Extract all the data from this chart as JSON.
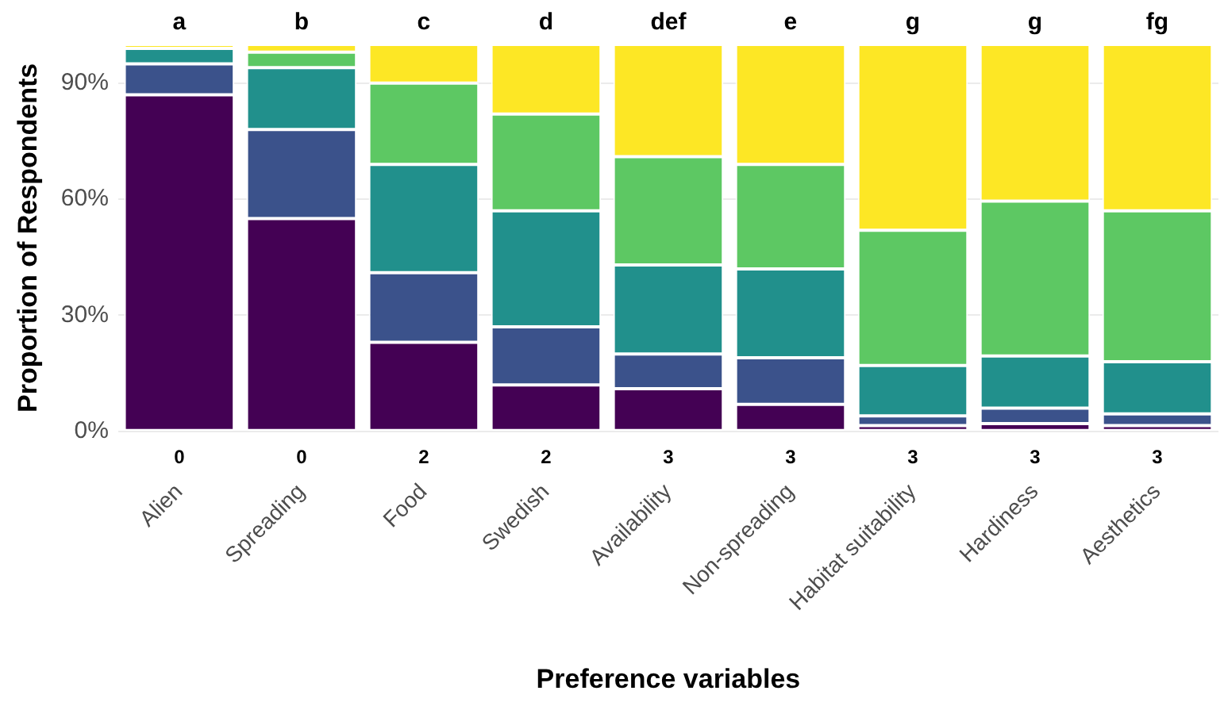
{
  "chart_data": {
    "type": "bar",
    "stacked": true,
    "xlabel": "Preference variables",
    "ylabel": "Proportion of Respondents",
    "categories": [
      "Alien",
      "Spreading",
      "Food",
      "Swedish",
      "Availability",
      "Non-spreading",
      "Habitat suitability",
      "Hardiness",
      "Aesthetics"
    ],
    "series": [
      {
        "color": "#440154",
        "values": [
          87,
          55,
          23,
          12,
          11,
          7,
          1.5,
          2,
          1.5
        ]
      },
      {
        "color": "#3b528b",
        "values": [
          8,
          23,
          18,
          15,
          9,
          12,
          2.5,
          4,
          3
        ]
      },
      {
        "color": "#21908c",
        "values": [
          4,
          16,
          28,
          30,
          23,
          23,
          13,
          13.5,
          13.5
        ]
      },
      {
        "color": "#5dc863",
        "values": [
          0,
          4,
          21,
          25,
          28,
          27,
          35,
          40,
          39
        ]
      },
      {
        "color": "#fde725",
        "values": [
          1,
          2,
          10,
          18,
          29,
          31,
          48,
          40.5,
          43
        ]
      }
    ],
    "ylim": [
      0,
      100
    ],
    "yticks": [
      {
        "value": 0,
        "label": "0%"
      },
      {
        "value": 30,
        "label": "30%"
      },
      {
        "value": 60,
        "label": "60%"
      },
      {
        "value": 90,
        "label": "90%"
      }
    ],
    "grid": "y",
    "legend": false,
    "annotations": [
      {
        "text": "a",
        "x": "Alien",
        "y": 100
      },
      {
        "text": "b",
        "x": "Spreading",
        "y": 100
      },
      {
        "text": "c",
        "x": "Food",
        "y": 100
      },
      {
        "text": "d",
        "x": "Swedish",
        "y": 100
      },
      {
        "text": "def",
        "x": "Availability",
        "y": 100
      },
      {
        "text": "e",
        "x": "Non-spreading",
        "y": 100
      },
      {
        "text": "g",
        "x": "Habitat suitability",
        "y": 100
      },
      {
        "text": "g",
        "x": "Hardiness",
        "y": 100
      },
      {
        "text": "fg",
        "x": "Aesthetics",
        "y": 100
      },
      {
        "text": "0",
        "x": "Alien",
        "y": 0
      },
      {
        "text": "0",
        "x": "Spreading",
        "y": 0
      },
      {
        "text": "2",
        "x": "Food",
        "y": 0
      },
      {
        "text": "2",
        "x": "Swedish",
        "y": 0
      },
      {
        "text": "3",
        "x": "Availability",
        "y": 0
      },
      {
        "text": "3",
        "x": "Non-spreading",
        "y": 0
      },
      {
        "text": "3",
        "x": "Habitat suitability",
        "y": 0
      },
      {
        "text": "3",
        "x": "Hardiness",
        "y": 0
      },
      {
        "text": "3",
        "x": "Aesthetics",
        "y": 0
      }
    ]
  }
}
